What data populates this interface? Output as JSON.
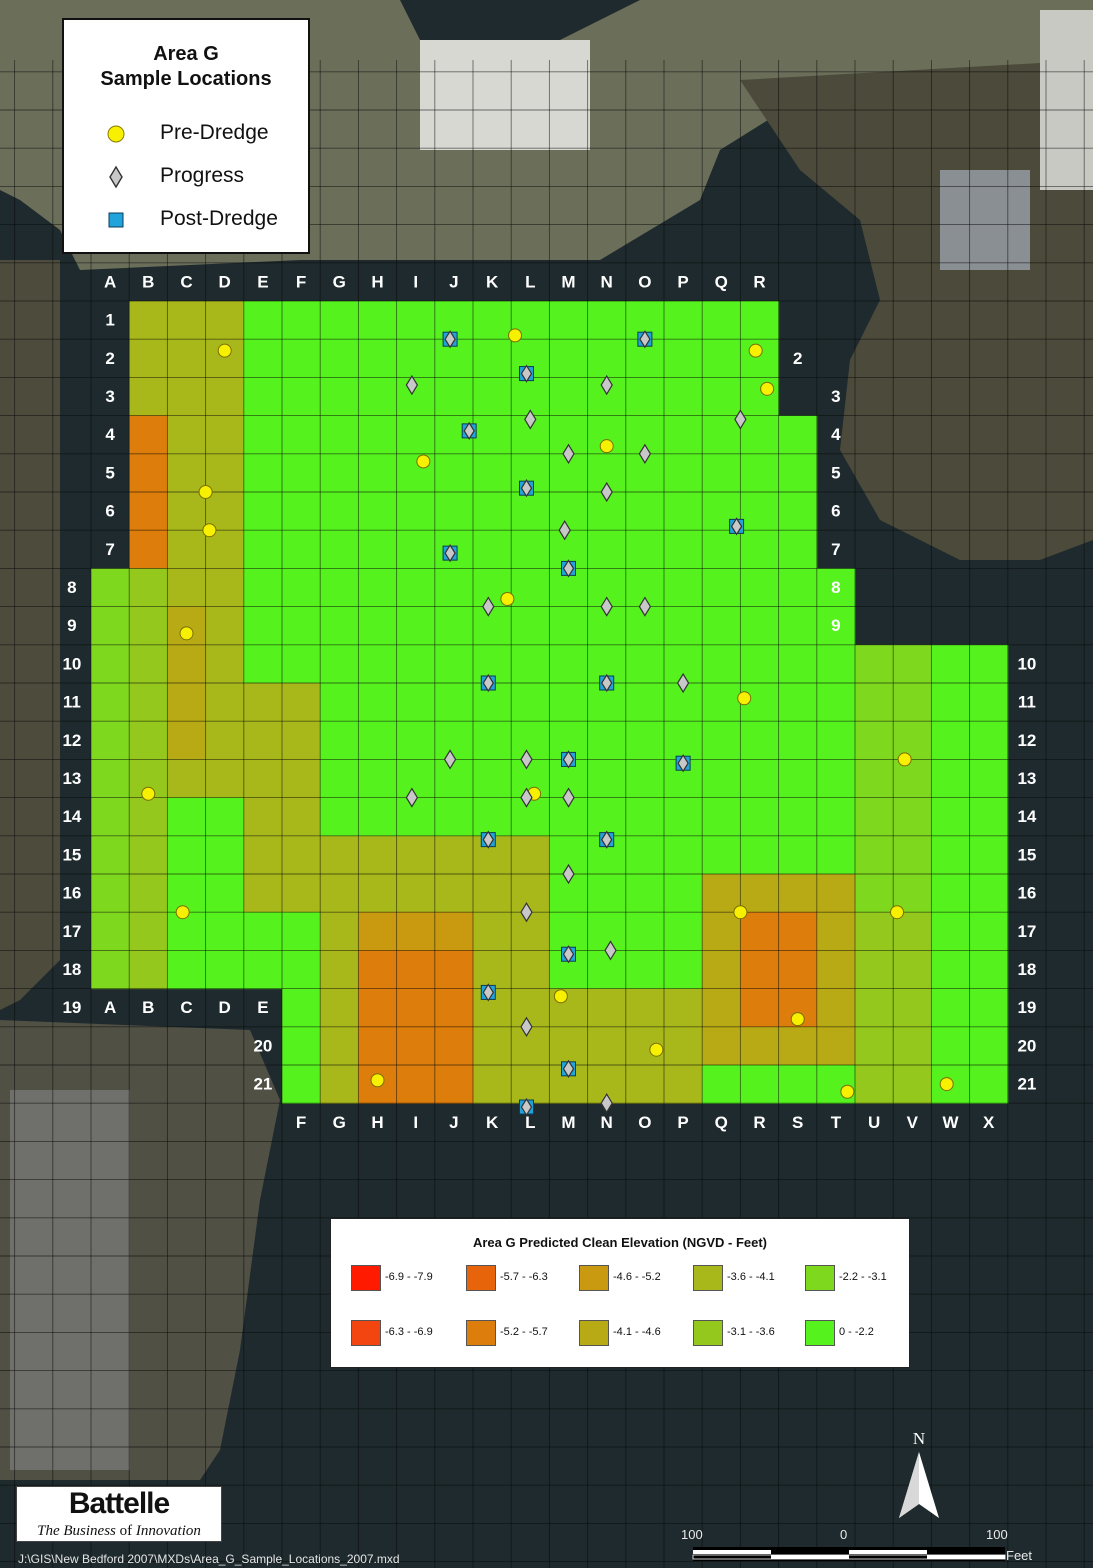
{
  "legend": {
    "title_line1": "Area G",
    "title_line2": "Sample Locations",
    "items": [
      {
        "label": "Pre-Dredge",
        "icon": "yellow-circle-icon",
        "color": "#f7f000"
      },
      {
        "label": "Progress",
        "icon": "gray-diamond-icon",
        "color": "#c8c8c8"
      },
      {
        "label": "Post-Dredge",
        "icon": "blue-square-icon",
        "color": "#21a3dc"
      }
    ]
  },
  "elevation_legend": {
    "title": "Area G Predicted Clean Elevation (NGVD - Feet)",
    "classes": [
      {
        "label": "-6.9  -  -7.9",
        "color": "#ff1a00"
      },
      {
        "label": "-5.7  -  -6.3",
        "color": "#e8640a"
      },
      {
        "label": "-4.6 -  -5.2",
        "color": "#c99a10"
      },
      {
        "label": "-3.6  -  -4.1",
        "color": "#a8b81a"
      },
      {
        "label": "-2.2  -  -3.1",
        "color": "#7ed81e"
      },
      {
        "label": "-6.3  -  -6.9",
        "color": "#f24510"
      },
      {
        "label": "-5.2  -  -5.7",
        "color": "#dc7d0c"
      },
      {
        "label": "-4.1  -  -4.6",
        "color": "#b8aa14"
      },
      {
        "label": "-3.1  -  -3.6",
        "color": "#94c81c"
      },
      {
        "label": "0 - -2.2",
        "color": "#55f21e"
      }
    ]
  },
  "grid": {
    "columns": [
      "A",
      "B",
      "C",
      "D",
      "E",
      "F",
      "G",
      "H",
      "I",
      "J",
      "K",
      "L",
      "M",
      "N",
      "O",
      "P",
      "Q",
      "R",
      "S",
      "T",
      "U",
      "V",
      "W",
      "X"
    ],
    "rows": [
      "1",
      "2",
      "3",
      "4",
      "5",
      "6",
      "7",
      "8",
      "9",
      "10",
      "11",
      "12",
      "13",
      "14",
      "15",
      "16",
      "17",
      "18",
      "19",
      "20",
      "21"
    ],
    "label_color": "#ffffff"
  },
  "samples": {
    "pre_dredge": [
      [
        3.0,
        0.8
      ],
      [
        10.6,
        0.4
      ],
      [
        16.9,
        0.8
      ],
      [
        17.2,
        1.8
      ],
      [
        8.2,
        3.7
      ],
      [
        13.0,
        3.3
      ],
      [
        2.5,
        4.5
      ],
      [
        2.6,
        5.5
      ],
      [
        10.4,
        7.3
      ],
      [
        2.0,
        8.2
      ],
      [
        16.6,
        9.9
      ],
      [
        20.8,
        11.5
      ],
      [
        1.0,
        12.4
      ],
      [
        11.1,
        12.4
      ],
      [
        1.9,
        15.5
      ],
      [
        16.5,
        15.5
      ],
      [
        20.6,
        15.5
      ],
      [
        11.8,
        17.7
      ],
      [
        18.0,
        18.3
      ],
      [
        14.3,
        19.1
      ],
      [
        7.0,
        19.9
      ],
      [
        19.3,
        20.2
      ],
      [
        21.9,
        20.0
      ]
    ],
    "progress": [
      [
        7.9,
        1.7
      ],
      [
        13.0,
        1.7
      ],
      [
        11.0,
        2.6
      ],
      [
        16.5,
        2.6
      ],
      [
        12.0,
        3.5
      ],
      [
        14.0,
        3.5
      ],
      [
        13.0,
        4.5
      ],
      [
        11.9,
        5.5
      ],
      [
        9.9,
        7.5
      ],
      [
        13.0,
        7.5
      ],
      [
        14.0,
        7.5
      ],
      [
        15.0,
        9.5
      ],
      [
        8.9,
        11.5
      ],
      [
        10.9,
        11.5
      ],
      [
        7.9,
        12.5
      ],
      [
        10.9,
        12.5
      ],
      [
        12.0,
        12.5
      ],
      [
        12.0,
        14.5
      ],
      [
        10.9,
        15.5
      ],
      [
        13.1,
        16.5
      ],
      [
        10.9,
        18.5
      ],
      [
        13.0,
        20.5
      ]
    ],
    "post_dredge": [
      [
        8.9,
        0.5
      ],
      [
        14.0,
        0.5
      ],
      [
        10.9,
        1.4
      ],
      [
        9.4,
        2.9
      ],
      [
        10.9,
        4.4
      ],
      [
        16.4,
        5.4
      ],
      [
        8.9,
        6.1
      ],
      [
        12.0,
        6.5
      ],
      [
        9.9,
        9.5
      ],
      [
        13.0,
        9.5
      ],
      [
        12.0,
        11.5
      ],
      [
        15.0,
        11.6
      ],
      [
        9.9,
        13.6
      ],
      [
        13.0,
        13.6
      ],
      [
        12.0,
        16.6
      ],
      [
        9.9,
        17.6
      ],
      [
        12.0,
        19.6
      ],
      [
        10.9,
        20.6
      ]
    ]
  },
  "branding": {
    "brand": "Battelle",
    "tagline_part1": "The Business ",
    "tagline_italic": "of",
    "tagline_part2": " Innovation"
  },
  "file_path": "J:\\GIS\\New Bedford 2007\\MXDs\\Area_G_Sample_Locations_2007.mxd",
  "scale_bar": {
    "left_label": "100",
    "mid_label": "0",
    "right_label": "100",
    "units": "Feet"
  },
  "north_arrow": {
    "label": "N"
  }
}
